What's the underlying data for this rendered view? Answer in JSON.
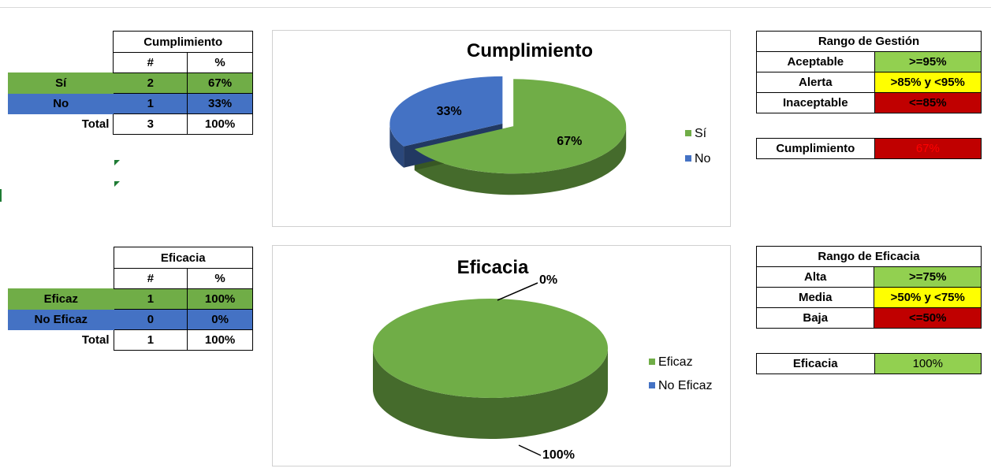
{
  "cumplimiento_table": {
    "title": "Cumplimiento",
    "col_count": "#",
    "col_pct": "%",
    "rows": [
      {
        "label": "Sí",
        "count": "2",
        "pct": "67%"
      },
      {
        "label": "No",
        "count": "1",
        "pct": "33%"
      }
    ],
    "total": {
      "label": "Total",
      "count": "3",
      "pct": "100%"
    }
  },
  "eficacia_table": {
    "title": "Eficacia",
    "col_count": "#",
    "col_pct": "%",
    "rows": [
      {
        "label": "Eficaz",
        "count": "1",
        "pct": "100%"
      },
      {
        "label": "No Eficaz",
        "count": "0",
        "pct": "0%"
      }
    ],
    "total": {
      "label": "Total",
      "count": "1",
      "pct": "100%"
    }
  },
  "rango_gestion": {
    "title": "Rango de Gestión",
    "rows": [
      {
        "label": "Aceptable",
        "range": ">=95%",
        "color": "#92d050"
      },
      {
        "label": "Alerta",
        "range": ">85% y <95%",
        "color": "#ffff00"
      },
      {
        "label": "Inaceptable",
        "range": "<=85%",
        "color": "#c00000"
      }
    ],
    "result_label": "Cumplimiento",
    "result_value": "67%",
    "result_color": "#c00000"
  },
  "rango_eficacia": {
    "title": "Rango de Eficacia",
    "rows": [
      {
        "label": "Alta",
        "range": ">=75%",
        "color": "#92d050"
      },
      {
        "label": "Media",
        "range": ">50% y <75%",
        "color": "#ffff00"
      },
      {
        "label": "Baja",
        "range": "<=50%",
        "color": "#c00000"
      }
    ],
    "result_label": "Eficacia",
    "result_value": "100%",
    "result_color": "#92d050"
  },
  "colors": {
    "green": "#70ad47",
    "blue": "#4472c4"
  },
  "chart_data": [
    {
      "type": "pie",
      "title": "Cumplimiento",
      "categories": [
        "Sí",
        "No"
      ],
      "values": [
        67,
        33
      ],
      "labels": [
        "67%",
        "33%"
      ],
      "colors": [
        "#70ad47",
        "#4472c4"
      ],
      "legend": "right",
      "style": "3d"
    },
    {
      "type": "pie",
      "title": "Eficacia",
      "categories": [
        "Eficaz",
        "No Eficaz"
      ],
      "values": [
        100,
        0
      ],
      "labels": [
        "100%",
        "0%"
      ],
      "colors": [
        "#70ad47",
        "#4472c4"
      ],
      "legend": "right",
      "style": "3d"
    }
  ]
}
